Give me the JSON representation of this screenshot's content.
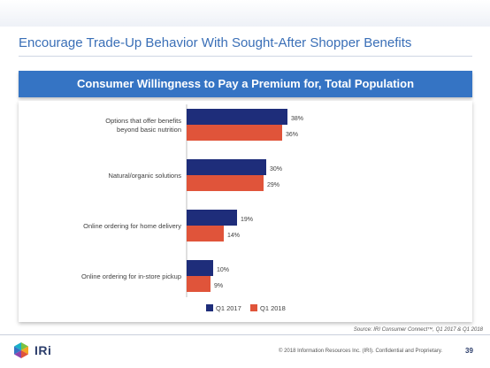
{
  "slide": {
    "title": "Encourage Trade-Up Behavior With Sought-After Shopper Benefits",
    "source": "Source: IRI Consumer Connect™, Q1 2017 & Q1 2018",
    "copyright": "© 2018 Information Resources Inc. (IRI). Confidential and Proprietary.",
    "page_number": "39",
    "logo_text": "IRi",
    "colors": {
      "title": "#3a6fb7",
      "header": "#3574c4"
    }
  },
  "chart_data": {
    "type": "bar",
    "orientation": "horizontal",
    "title": "Consumer Willingness to Pay a Premium for, Total Population",
    "categories": [
      [
        "Options that offer benefits",
        "beyond basic nutrition"
      ],
      [
        "Natural/organic solutions"
      ],
      [
        "Online ordering for home delivery"
      ],
      [
        "Online ordering for in-store pickup"
      ]
    ],
    "series": [
      {
        "name": "Q1 2017",
        "color": "#1e2d7a",
        "values": [
          38,
          30,
          19,
          10
        ]
      },
      {
        "name": "Q1 2018",
        "color": "#e0543a",
        "values": [
          36,
          29,
          14,
          9
        ]
      }
    ],
    "value_suffix": "%",
    "xlim": [
      0,
      100
    ],
    "grid": false,
    "legend_position": "bottom-center"
  }
}
